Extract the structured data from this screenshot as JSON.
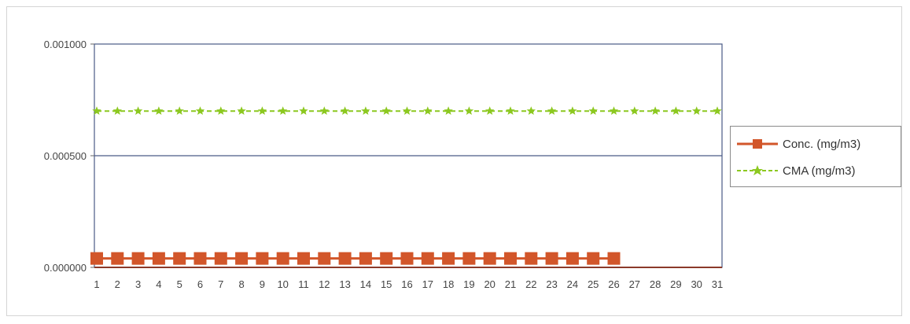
{
  "chart_data": {
    "type": "line",
    "title": "",
    "xlabel": "",
    "ylabel": "",
    "categories": [
      "1",
      "2",
      "3",
      "4",
      "5",
      "6",
      "7",
      "8",
      "9",
      "10",
      "11",
      "12",
      "13",
      "14",
      "15",
      "16",
      "17",
      "18",
      "19",
      "20",
      "21",
      "22",
      "23",
      "24",
      "25",
      "26",
      "27",
      "28",
      "29",
      "30",
      "31"
    ],
    "y_ticks": [
      "0.000000",
      "0.000500",
      "0.001000"
    ],
    "ylim": [
      0,
      0.001
    ],
    "grid": true,
    "legend_position": "right",
    "series": [
      {
        "name": "Conc. (mg/m3)",
        "color": "#d2562a",
        "marker": "square",
        "values": [
          4e-05,
          4e-05,
          4e-05,
          4e-05,
          4e-05,
          4e-05,
          4e-05,
          4e-05,
          4e-05,
          4e-05,
          4e-05,
          4e-05,
          4e-05,
          4e-05,
          4e-05,
          4e-05,
          4e-05,
          4e-05,
          4e-05,
          4e-05,
          4e-05,
          4e-05,
          4e-05,
          4e-05,
          4e-05,
          4e-05,
          null,
          null,
          null,
          null,
          null
        ]
      },
      {
        "name": "CMA (mg/m3)",
        "color": "#8cc820",
        "marker": "star",
        "values": [
          0.0007,
          0.0007,
          0.0007,
          0.0007,
          0.0007,
          0.0007,
          0.0007,
          0.0007,
          0.0007,
          0.0007,
          0.0007,
          0.0007,
          0.0007,
          0.0007,
          0.0007,
          0.0007,
          0.0007,
          0.0007,
          0.0007,
          0.0007,
          0.0007,
          0.0007,
          0.0007,
          0.0007,
          0.0007,
          0.0007,
          0.0007,
          0.0007,
          0.0007,
          0.0007,
          0.0007
        ]
      }
    ]
  }
}
